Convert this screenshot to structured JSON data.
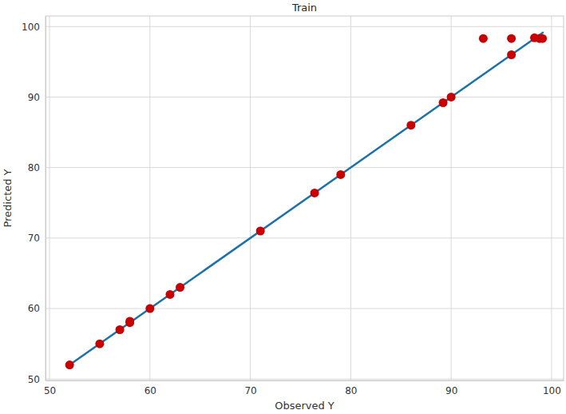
{
  "chart_data": {
    "type": "scatter",
    "title": "Train",
    "x_label": "Observed Y",
    "y_label": "Predicted Y",
    "xlim": [
      49.6,
      101.2
    ],
    "ylim": [
      49.8,
      101.5
    ],
    "xticks": [
      50,
      60,
      70,
      80,
      90,
      100
    ],
    "yticks": [
      50,
      60,
      70,
      80,
      90,
      100
    ],
    "grid": true,
    "series": [
      {
        "type": "line",
        "color": "#1a72a8",
        "line_style": "solid",
        "x": [
          52,
          99.2
        ],
        "values": [
          52,
          99.2
        ]
      },
      {
        "type": "scatter",
        "color": "#c80000",
        "marker": "circle",
        "x": [
          52,
          55,
          57,
          58,
          58,
          60,
          62,
          63,
          71,
          76.4,
          79,
          86,
          89.2,
          90,
          93.2,
          96,
          96,
          98.3,
          98.8,
          99.1
        ],
        "values": [
          52,
          55,
          57,
          58,
          58.2,
          60,
          62,
          63,
          71,
          76.4,
          79,
          86,
          89.2,
          90,
          98.3,
          98.3,
          96,
          98.4,
          98.3,
          98.3
        ]
      }
    ]
  }
}
